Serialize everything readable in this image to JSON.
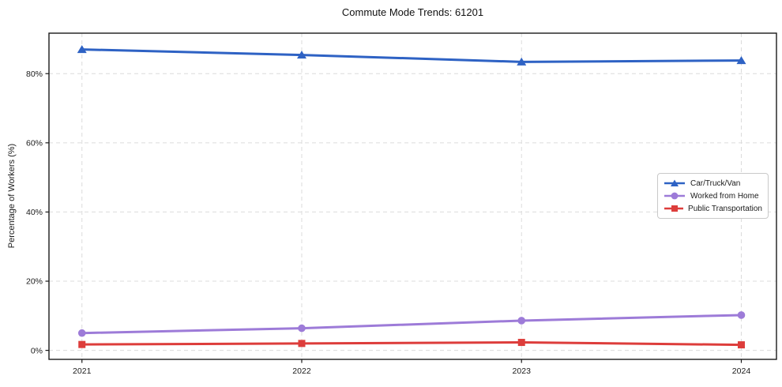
{
  "chart_data": {
    "type": "line",
    "title": "Commute Mode Trends: 61201",
    "xlabel": "",
    "ylabel": "Percentage of Workers (%)",
    "x": [
      2021,
      2022,
      2023,
      2024
    ],
    "x_tick_labels": [
      "2021",
      "2022",
      "2023",
      "2024"
    ],
    "y_ticks": [
      0,
      20,
      40,
      60,
      80
    ],
    "y_tick_labels": [
      "0%",
      "20%",
      "40%",
      "60%",
      "80%"
    ],
    "xlim": [
      2020.85,
      2024.16
    ],
    "ylim": [
      -2.6,
      91.7
    ],
    "grid": true,
    "grid_style": "dashed",
    "legend_position": "center-right",
    "background_color": "#ffffff",
    "series": [
      {
        "name": "Car/Truck/Van",
        "marker": "triangle",
        "color": "#2e62c4",
        "values": [
          87.0,
          85.4,
          83.4,
          83.8
        ]
      },
      {
        "name": "Worked from Home",
        "marker": "circle",
        "color": "#9d7bd8",
        "values": [
          5.0,
          6.4,
          8.6,
          10.2
        ]
      },
      {
        "name": "Public Transportation",
        "marker": "square",
        "color": "#dd3d3b",
        "values": [
          1.7,
          2.0,
          2.3,
          1.6
        ]
      }
    ]
  }
}
